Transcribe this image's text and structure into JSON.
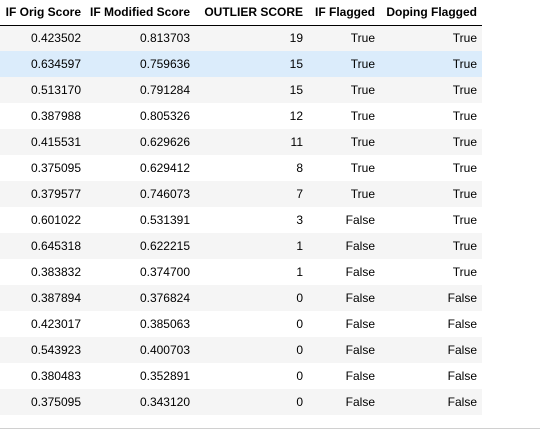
{
  "table": {
    "columns": [
      "IF Orig Score",
      "IF Modified Score",
      "OUTLIER SCORE",
      "IF Flagged",
      "Doping Flagged"
    ],
    "highlighted_row_index": 1,
    "rows": [
      [
        "0.423502",
        "0.813703",
        "19",
        "True",
        "True"
      ],
      [
        "0.634597",
        "0.759636",
        "15",
        "True",
        "True"
      ],
      [
        "0.513170",
        "0.791284",
        "15",
        "True",
        "True"
      ],
      [
        "0.387988",
        "0.805326",
        "12",
        "True",
        "True"
      ],
      [
        "0.415531",
        "0.629626",
        "11",
        "True",
        "True"
      ],
      [
        "0.375095",
        "0.629412",
        "8",
        "True",
        "True"
      ],
      [
        "0.379577",
        "0.746073",
        "7",
        "True",
        "True"
      ],
      [
        "0.601022",
        "0.531391",
        "3",
        "False",
        "True"
      ],
      [
        "0.645318",
        "0.622215",
        "1",
        "False",
        "True"
      ],
      [
        "0.383832",
        "0.374700",
        "1",
        "False",
        "True"
      ],
      [
        "0.387894",
        "0.376824",
        "0",
        "False",
        "False"
      ],
      [
        "0.423017",
        "0.385063",
        "0",
        "False",
        "False"
      ],
      [
        "0.543923",
        "0.400703",
        "0",
        "False",
        "False"
      ],
      [
        "0.380483",
        "0.352891",
        "0",
        "False",
        "False"
      ],
      [
        "0.375095",
        "0.343120",
        "0",
        "False",
        "False"
      ]
    ]
  }
}
